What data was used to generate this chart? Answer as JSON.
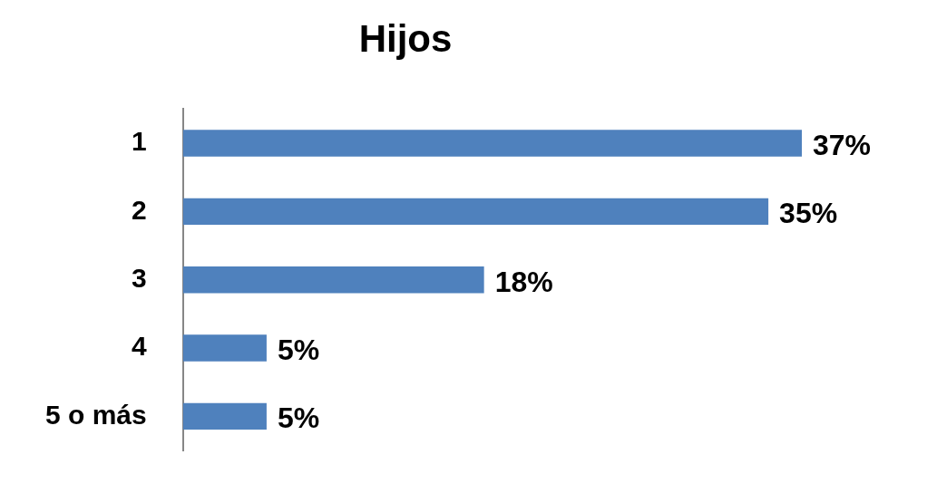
{
  "chart_data": {
    "type": "bar",
    "orientation": "horizontal",
    "title": "Hijos",
    "categories": [
      "1",
      "2",
      "3",
      "4",
      "5 o más"
    ],
    "values": [
      37,
      35,
      18,
      5,
      5
    ],
    "value_labels": [
      "37%",
      "35%",
      "18%",
      "5%",
      "5%"
    ],
    "color": "#4f81bd",
    "legend": false
  }
}
